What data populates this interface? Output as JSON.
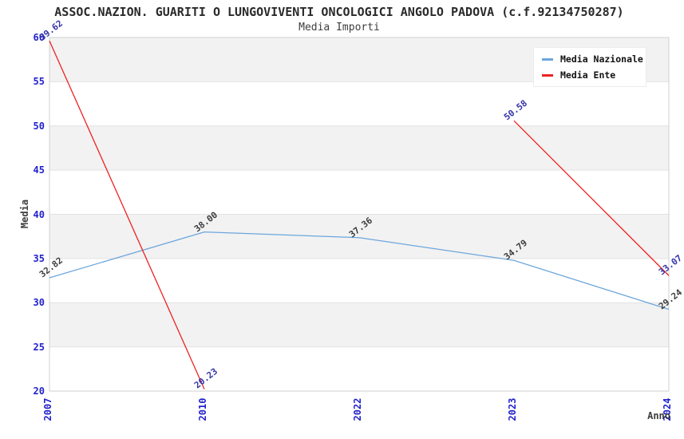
{
  "header": {
    "title": "ASSOC.NAZION. GUARITI O LUNGOVIVENTI ONCOLOGICI ANGOLO PADOVA (c.f.92134750287)",
    "subtitle": "Media Importi"
  },
  "chart_data": {
    "type": "line",
    "title": "ASSOC.NAZION. GUARITI O LUNGOVIVENTI ONCOLOGICI ANGOLO PADOVA (c.f.92134750287)",
    "subtitle": "Media Importi",
    "xlabel": "Anno",
    "ylabel": "Media",
    "categories": [
      "2007",
      "2010",
      "2022",
      "2023",
      "2024"
    ],
    "ylim": [
      20,
      60
    ],
    "yticks": [
      20,
      25,
      30,
      35,
      40,
      45,
      50,
      55,
      60
    ],
    "grid": "horizontal, alternating shaded bands",
    "legend_position": "top-right",
    "series": [
      {
        "name": "Media Nazionale",
        "color": "#6ca6dd",
        "label_color": "#3d3d3d",
        "values": [
          32.82,
          38.0,
          37.36,
          34.79,
          29.24
        ],
        "labels": [
          "32.82",
          "38.00",
          "37.36",
          "34.79",
          "29.24"
        ]
      },
      {
        "name": "Media Ente",
        "color": "#ee2222",
        "label_color": "#3333aa",
        "values": [
          59.62,
          20.23,
          null,
          50.58,
          33.07
        ],
        "labels": [
          "59.62",
          "20.23",
          null,
          "50.58",
          "33.07"
        ]
      }
    ],
    "colors": {
      "tick": "#2222cc",
      "band": "#f2f2f2",
      "grid": "#e2e2e2",
      "border": "#d0d0d0",
      "title": "#2a2a2a",
      "axis_label": "#3d3d3d",
      "background": "#ffffff"
    }
  }
}
